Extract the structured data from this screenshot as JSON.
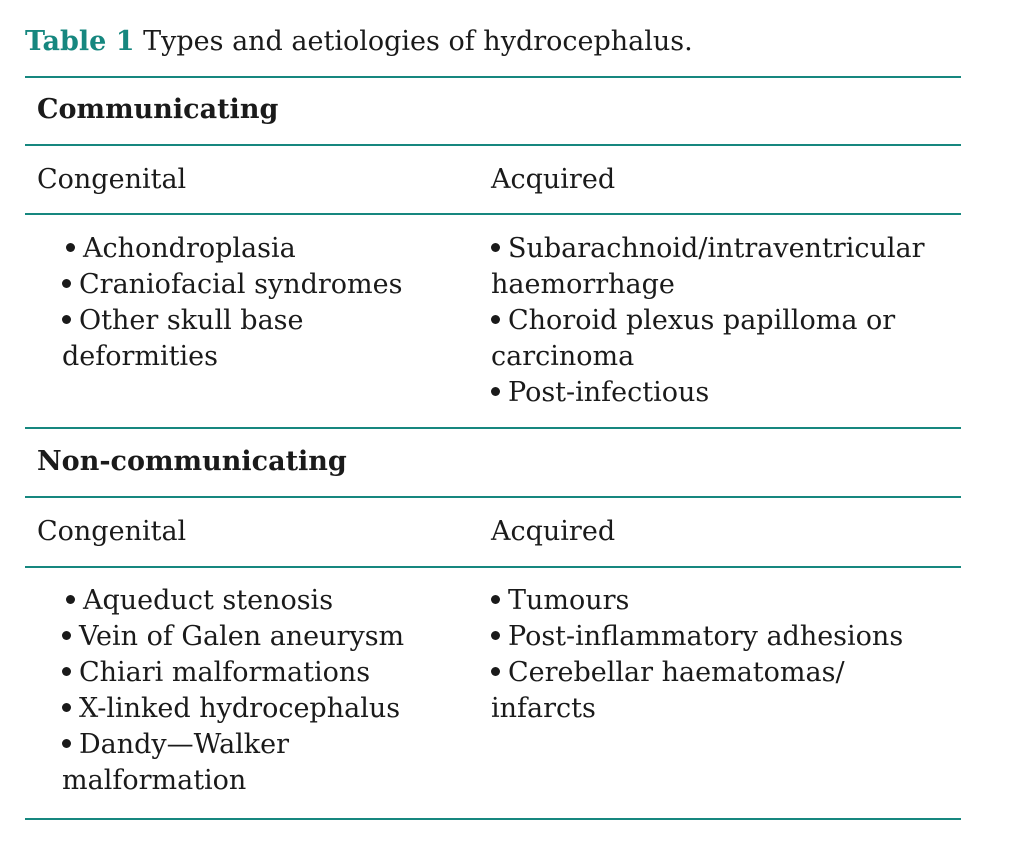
{
  "caption": {
    "label": "Table 1",
    "text": "Types and aetiologies of hydrocephalus."
  },
  "sections": [
    {
      "heading": "Communicating",
      "col_left_header": "Congenital",
      "col_right_header": "Acquired",
      "left_items": [
        [
          "Achondroplasia"
        ],
        [
          "Craniofacial syndromes"
        ],
        [
          "Other skull base",
          "deformities"
        ]
      ],
      "right_items": [
        [
          "Subarachnoid/intraventricular",
          "haemorrhage"
        ],
        [
          "Choroid plexus papilloma or",
          "carcinoma"
        ],
        [
          "Post-infectious"
        ]
      ]
    },
    {
      "heading": "Non-communicating",
      "col_left_header": "Congenital",
      "col_right_header": "Acquired",
      "left_items": [
        [
          "Aqueduct stenosis"
        ],
        [
          "Vein of Galen aneurysm"
        ],
        [
          "Chiari malformations"
        ],
        [
          "X-linked hydrocephalus"
        ],
        [
          "Dandy—Walker",
          "malformation"
        ]
      ],
      "right_items": [
        [
          "Tumours"
        ],
        [
          "Post-inflammatory adhesions"
        ],
        [
          "Cerebellar haematomas/",
          "infarcts"
        ]
      ]
    }
  ],
  "colors": {
    "accent": "#16877f",
    "text": "#1a1a1a"
  }
}
